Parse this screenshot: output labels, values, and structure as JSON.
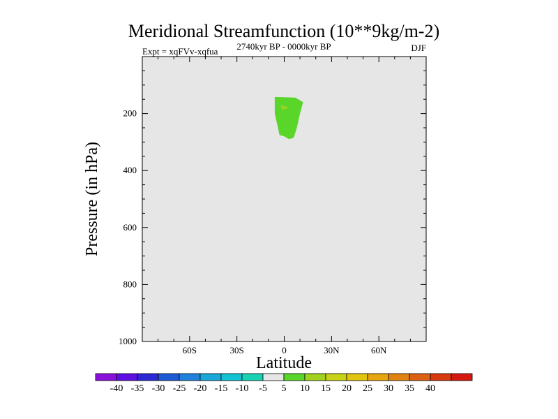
{
  "chart_data": {
    "type": "contour",
    "title": "Meridional Streamfunction (10**9kg/m-2)",
    "subtitle_left": "Expt = xqFVv-xqfua",
    "subtitle_center": "2740kyr BP - 0000kyr BP",
    "subtitle_right": "DJF",
    "xlabel": "Latitude",
    "ylabel": "Pressure (in hPa)",
    "xlim": [
      -90,
      90
    ],
    "ylim": [
      1000,
      0
    ],
    "x_ticks": [
      {
        "value": -60,
        "label": "60S"
      },
      {
        "value": -30,
        "label": "30S"
      },
      {
        "value": 0,
        "label": "0"
      },
      {
        "value": 30,
        "label": "30N"
      },
      {
        "value": 60,
        "label": "60N"
      }
    ],
    "y_ticks": [
      {
        "value": 200,
        "label": "200"
      },
      {
        "value": 400,
        "label": "400"
      },
      {
        "value": 600,
        "label": "600"
      },
      {
        "value": 800,
        "label": "800"
      },
      {
        "value": 1000,
        "label": "1000"
      }
    ],
    "background_level_color": "#e6e6e6",
    "regions": [
      {
        "level": "5 to 10",
        "color": "#5ad62a",
        "outline": [
          [
            -6,
            142
          ],
          [
            7,
            144
          ],
          [
            12,
            160
          ],
          [
            10,
            200
          ],
          [
            8,
            250
          ],
          [
            6,
            285
          ],
          [
            3,
            290
          ],
          [
            0,
            280
          ],
          [
            -3,
            275
          ],
          [
            -4,
            250
          ],
          [
            -6,
            200
          ],
          [
            -6,
            160
          ]
        ]
      },
      {
        "level": "10 to 15",
        "color": "#a3d21e",
        "outline": [
          [
            -2,
            170
          ],
          [
            3,
            180
          ],
          [
            -1,
            186
          ],
          [
            -2,
            178
          ]
        ]
      }
    ],
    "colorbar": {
      "colors": [
        "#8a10dc",
        "#5e10e0",
        "#2d28d4",
        "#1e5ad6",
        "#1e82dc",
        "#18a8d8",
        "#10c2d4",
        "#18d2b4",
        "#e6e6e6",
        "#5ad62a",
        "#a3d21e",
        "#c8d214",
        "#e0c40e",
        "#e6a40e",
        "#e08210",
        "#dc6012",
        "#d83a10",
        "#d41a10"
      ],
      "labels": [
        "-40",
        "-35",
        "-30",
        "-25",
        "-20",
        "-15",
        "-10",
        "-5",
        "5",
        "10",
        "15",
        "20",
        "25",
        "30",
        "35",
        "40"
      ]
    }
  }
}
